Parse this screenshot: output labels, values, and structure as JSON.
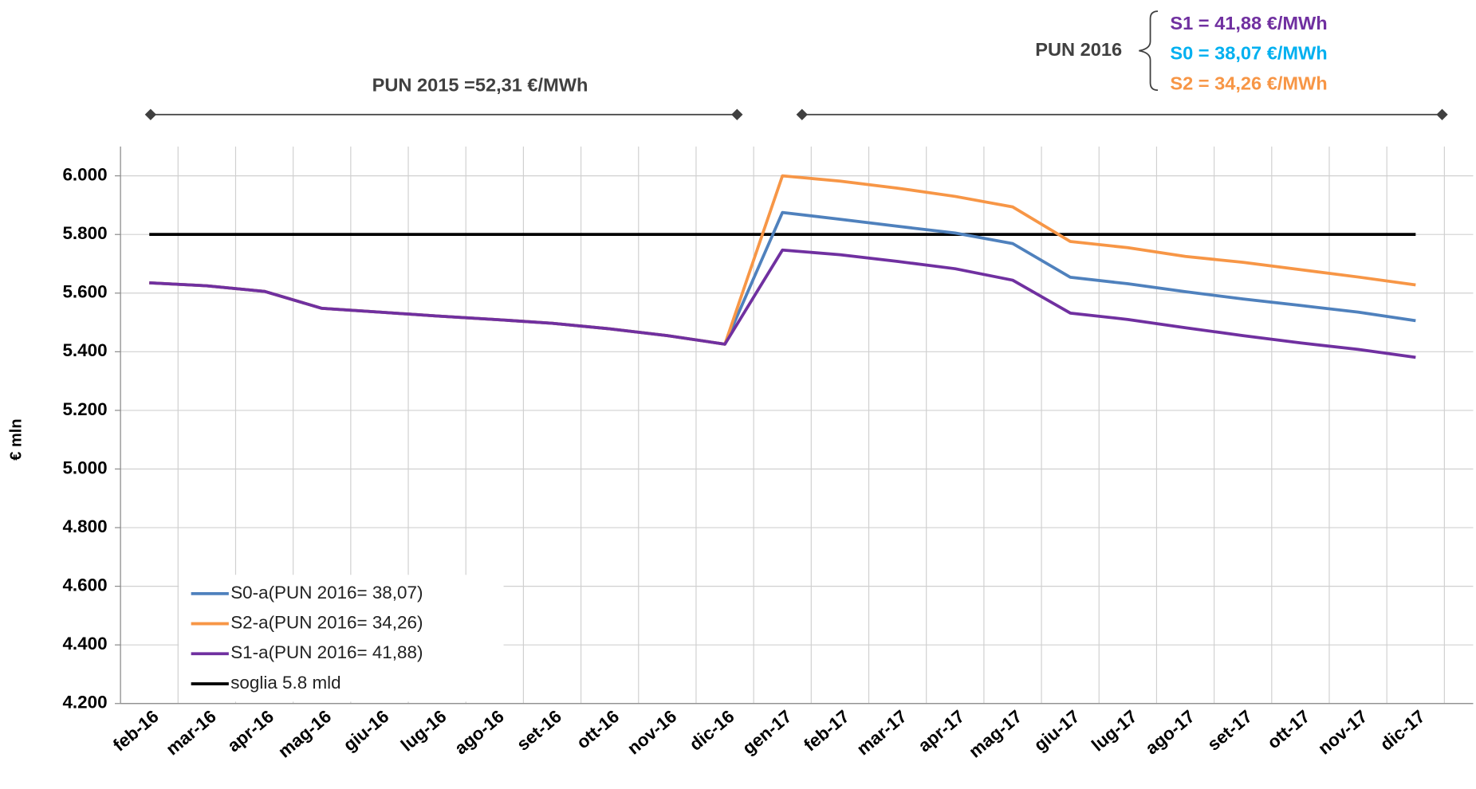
{
  "chart_data": {
    "type": "line",
    "y_label": "€ mln",
    "annotations": {
      "pun_2015": "PUN 2015 =52,31 €/MWh",
      "pun_2016": "PUN 2016",
      "s1": "S1 = 41,88 €/MWh",
      "s0": "S0 = 38,07 €/MWh",
      "s2": "S2 = 34,26 €/MWh"
    },
    "annotation_colors": {
      "s1": "#7030a0",
      "s0": "#00b0f0",
      "s2": "#f79646"
    },
    "categories": [
      "feb-16",
      "mar-16",
      "apr-16",
      "mag-16",
      "giu-16",
      "lug-16",
      "ago-16",
      "set-16",
      "ott-16",
      "nov-16",
      "dic-16",
      "gen-17",
      "feb-17",
      "mar-17",
      "apr-17",
      "mag-17",
      "giu-17",
      "lug-17",
      "ago-17",
      "set-17",
      "ott-17",
      "nov-17",
      "dic-17"
    ],
    "series": [
      {
        "name": "S0-a(PUN 2016= 38,07)",
        "color": "#4f81bd",
        "values": [
          5635,
          5625,
          5606,
          5548,
          5535,
          5522,
          5510,
          5497,
          5478,
          5455,
          5426,
          5875,
          5852,
          5828,
          5805,
          5769,
          5654,
          5632,
          5605,
          5580,
          5558,
          5535,
          5506
        ]
      },
      {
        "name": "S2-a(PUN 2016= 34,26)",
        "color": "#f79646",
        "values": [
          5635,
          5625,
          5606,
          5548,
          5535,
          5522,
          5510,
          5497,
          5478,
          5455,
          5426,
          6000,
          5982,
          5958,
          5930,
          5894,
          5776,
          5755,
          5725,
          5705,
          5680,
          5655,
          5628
        ]
      },
      {
        "name": "S1-a(PUN 2016= 41,88)",
        "color": "#7030a0",
        "values": [
          5635,
          5625,
          5606,
          5548,
          5535,
          5522,
          5510,
          5497,
          5478,
          5455,
          5426,
          5747,
          5731,
          5708,
          5683,
          5644,
          5532,
          5510,
          5482,
          5455,
          5430,
          5408,
          5381
        ]
      },
      {
        "name": "soglia 5.8 mld",
        "color": "#000000",
        "values": [
          5800,
          5800,
          5800,
          5800,
          5800,
          5800,
          5800,
          5800,
          5800,
          5800,
          5800,
          5800,
          5800,
          5800,
          5800,
          5800,
          5800,
          5800,
          5800,
          5800,
          5800,
          5800,
          5800
        ]
      }
    ],
    "ylim": [
      4200,
      6100
    ],
    "yticks": [
      {
        "value": 4200,
        "label": "4.200"
      },
      {
        "value": 4400,
        "label": "4.400"
      },
      {
        "value": 4600,
        "label": "4.600"
      },
      {
        "value": 4800,
        "label": "4.800"
      },
      {
        "value": 5000,
        "label": "5.000"
      },
      {
        "value": 5200,
        "label": "5.200"
      },
      {
        "value": 5400,
        "label": "5.400"
      },
      {
        "value": 5600,
        "label": "5.600"
      },
      {
        "value": 5800,
        "label": "5.800"
      },
      {
        "value": 6000,
        "label": "6.000"
      }
    ],
    "grid": true
  }
}
